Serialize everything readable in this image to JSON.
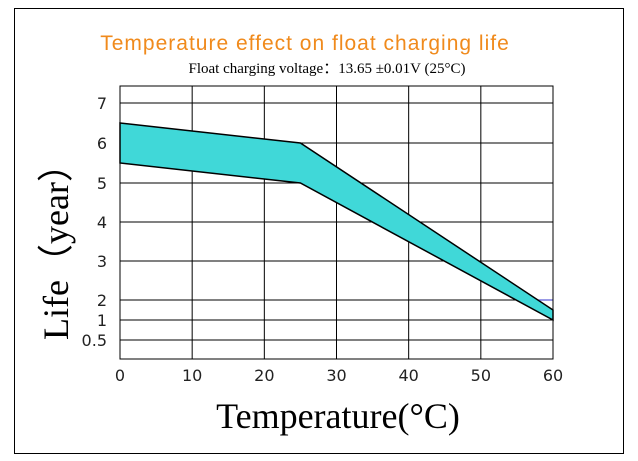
{
  "chart_data": {
    "type": "area",
    "title": "Temperature effect on float charging life",
    "subtitle": "Float charging voltage：13.65 ±0.01V (25°C)",
    "xlabel": "Temperature(°C)",
    "ylabel": "Life（year）",
    "x_ticks": [
      "0",
      "10",
      "20",
      "30",
      "40",
      "50",
      "60"
    ],
    "y_ticks": [
      "0.5",
      "1",
      "2",
      "3",
      "4",
      "5",
      "6",
      "7"
    ],
    "xlim": [
      0,
      60
    ],
    "ylim": [
      0,
      7
    ],
    "grid": true,
    "band": {
      "upper": [
        [
          0,
          6.5
        ],
        [
          25,
          6.0
        ],
        [
          60,
          1.5
        ]
      ],
      "lower": [
        [
          0,
          5.5
        ],
        [
          25,
          5.0
        ],
        [
          60,
          1.0
        ]
      ]
    },
    "colors": {
      "band_fill": "#40d8d8",
      "title": "#f08a1c",
      "marker_line": "#3333cc"
    }
  }
}
